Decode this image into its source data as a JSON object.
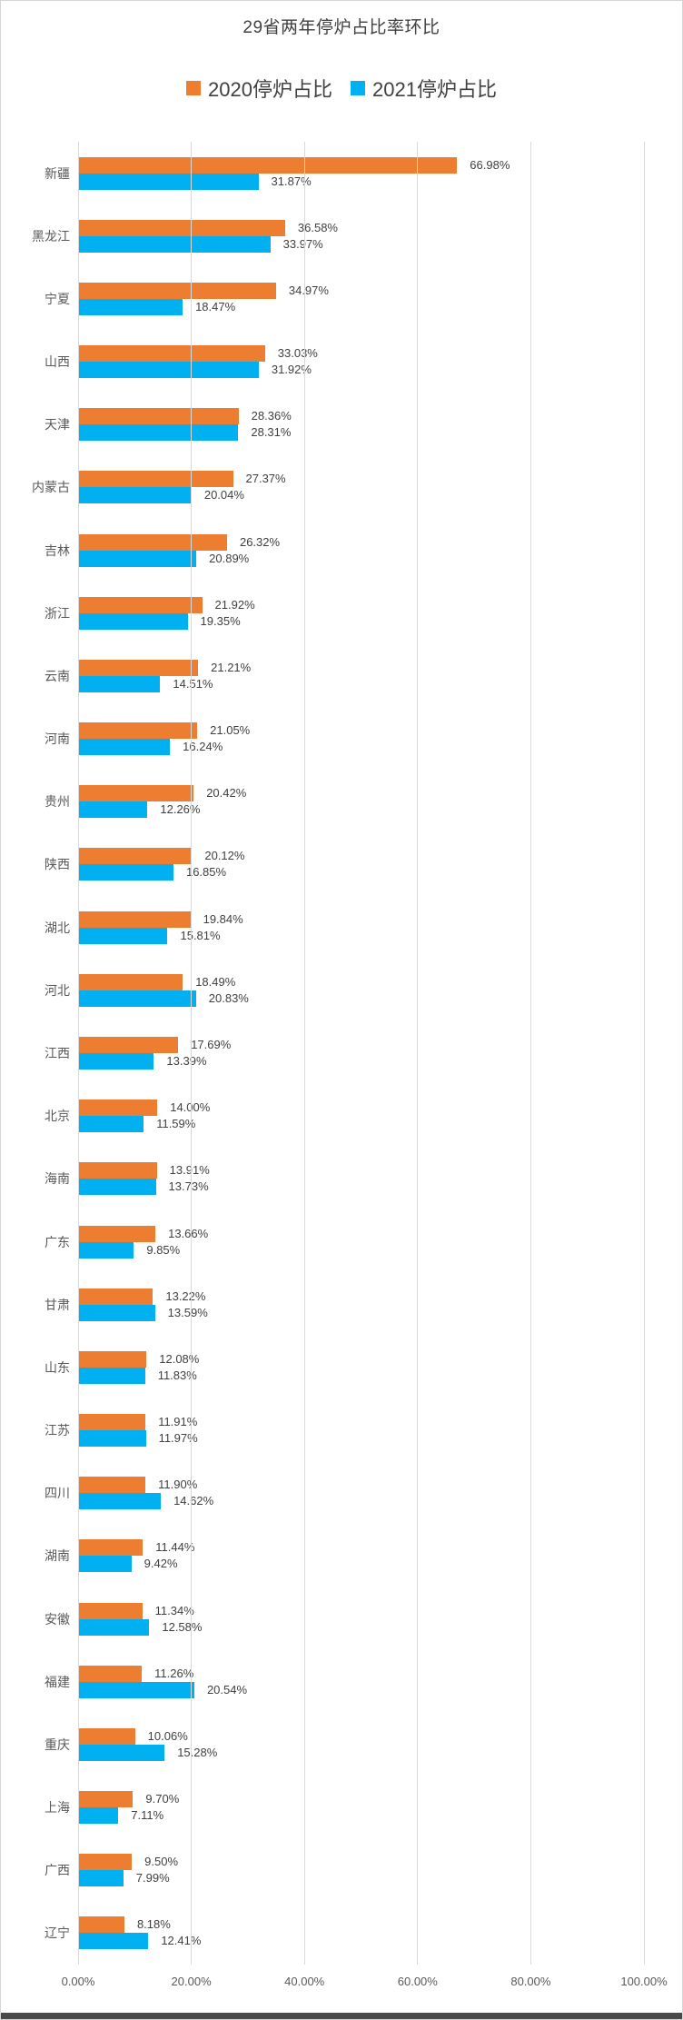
{
  "chart_data": {
    "type": "bar",
    "orientation": "horizontal",
    "title": "29省两年停炉占比率环比",
    "grid": true,
    "legend_position": "top",
    "xlim": [
      0,
      100
    ],
    "x_ticks": [
      "0.00%",
      "20.00%",
      "40.00%",
      "60.00%",
      "80.00%",
      "100.00%"
    ],
    "categories": [
      "新疆",
      "黑龙江",
      "宁夏",
      "山西",
      "天津",
      "内蒙古",
      "吉林",
      "浙江",
      "云南",
      "河南",
      "贵州",
      "陕西",
      "湖北",
      "河北",
      "江西",
      "北京",
      "海南",
      "广东",
      "甘肃",
      "山东",
      "江苏",
      "四川",
      "湖南",
      "安徽",
      "福建",
      "重庆",
      "上海",
      "广西",
      "辽宁"
    ],
    "series": [
      {
        "name": "2020停炉占比",
        "color": "#ED7D31",
        "values": [
          66.98,
          36.58,
          34.97,
          33.03,
          28.36,
          27.37,
          26.32,
          21.92,
          21.21,
          21.05,
          20.42,
          20.12,
          19.84,
          18.49,
          17.69,
          14.0,
          13.91,
          13.66,
          13.22,
          12.08,
          11.91,
          11.9,
          11.44,
          11.34,
          11.26,
          10.06,
          9.7,
          9.5,
          8.18
        ],
        "labels": [
          "66.98%",
          "36.58%",
          "34.97%",
          "33.03%",
          "28.36%",
          "27.37%",
          "26.32%",
          "21.92%",
          "21.21%",
          "21.05%",
          "20.42%",
          "20.12%",
          "19.84%",
          "18.49%",
          "17.69%",
          "14.00%",
          "13.91%",
          "13.66%",
          "13.22%",
          "12.08%",
          "11.91%",
          "11.90%",
          "11.44%",
          "11.34%",
          "11.26%",
          "10.06%",
          "9.70%",
          "9.50%",
          "8.18%"
        ]
      },
      {
        "name": "2021停炉占比",
        "color": "#00B0F0",
        "values": [
          31.87,
          33.97,
          18.47,
          31.92,
          28.31,
          20.04,
          20.89,
          19.35,
          14.51,
          16.24,
          12.26,
          16.85,
          15.81,
          20.83,
          13.39,
          11.59,
          13.73,
          9.85,
          13.59,
          11.83,
          11.97,
          14.62,
          9.42,
          12.58,
          20.54,
          15.28,
          7.11,
          7.99,
          12.41
        ],
        "labels": [
          "31.87%",
          "33.97%",
          "18.47%",
          "31.92%",
          "28.31%",
          "20.04%",
          "20.89%",
          "19.35%",
          "14.51%",
          "16.24%",
          "12.26%",
          "16.85%",
          "15.81%",
          "20.83%",
          "13.39%",
          "11.59%",
          "13.73%",
          "9.85%",
          "13.59%",
          "11.83%",
          "11.97%",
          "14.62%",
          "9.42%",
          "12.58%",
          "20.54%",
          "15.28%",
          "7.11%",
          "7.99%",
          "12.41%"
        ]
      }
    ]
  }
}
